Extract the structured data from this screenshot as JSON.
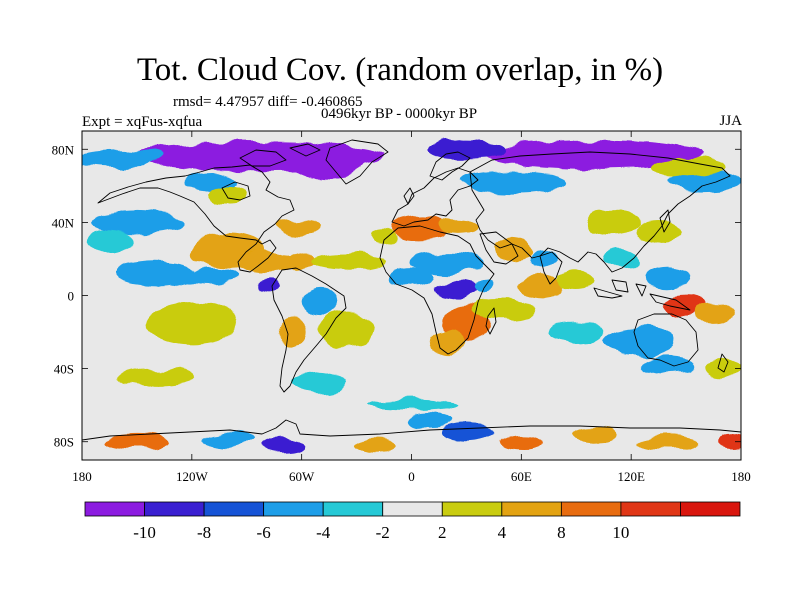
{
  "header": {
    "title": "Tot. Cloud Cov. (random overlap, in %)",
    "stats": "rmsd= 4.47957 diff= -0.460865",
    "period": "0496kyr BP - 0000kyr BP",
    "experiment": "Expt = xqFus-xqfua",
    "season": "JJA"
  },
  "map": {
    "projection": "cylindrical equidistant",
    "lon_range": [
      -180,
      180
    ],
    "lat_range": [
      -90,
      90
    ],
    "x_ticks": [
      {
        "lon": -180,
        "label": "180"
      },
      {
        "lon": -120,
        "label": "120W"
      },
      {
        "lon": -60,
        "label": "60W"
      },
      {
        "lon": 0,
        "label": "0"
      },
      {
        "lon": 60,
        "label": "60E"
      },
      {
        "lon": 120,
        "label": "120E"
      },
      {
        "lon": 180,
        "label": "180"
      }
    ],
    "y_ticks": [
      {
        "lat": 80,
        "label": "80N"
      },
      {
        "lat": 40,
        "label": "40N"
      },
      {
        "lat": 0,
        "label": "0"
      },
      {
        "lat": -40,
        "label": "40S"
      },
      {
        "lat": -80,
        "label": "80S"
      }
    ],
    "background_color": "#e8e8e8",
    "coastline_color": "#000000",
    "anomaly_patches": [
      {
        "lon": -85,
        "lat": 76,
        "rlon": 70,
        "rlat": 8,
        "level": -12
      },
      {
        "lon": -45,
        "lat": 74,
        "rlon": 20,
        "rlat": 10,
        "level": -12
      },
      {
        "lon": 100,
        "lat": 77,
        "rlon": 60,
        "rlat": 8,
        "level": -12
      },
      {
        "lon": 30,
        "lat": 80,
        "rlon": 20,
        "rlat": 5,
        "level": -10
      },
      {
        "lon": -160,
        "lat": 75,
        "rlon": 25,
        "rlat": 5,
        "level": -6
      },
      {
        "lon": -110,
        "lat": 62,
        "rlon": 15,
        "rlat": 5,
        "level": -6
      },
      {
        "lon": 55,
        "lat": 62,
        "rlon": 30,
        "rlat": 6,
        "level": -5
      },
      {
        "lon": 160,
        "lat": 62,
        "rlon": 20,
        "rlat": 6,
        "level": -5
      },
      {
        "lon": -100,
        "lat": 55,
        "rlon": 10,
        "rlat": 5,
        "level": 3
      },
      {
        "lon": 150,
        "lat": 70,
        "rlon": 20,
        "rlat": 5,
        "level": 3
      },
      {
        "lon": 5,
        "lat": 37,
        "rlon": 15,
        "rlat": 6,
        "level": 9
      },
      {
        "lon": 25,
        "lat": 38,
        "rlon": 10,
        "rlat": 4,
        "level": 6
      },
      {
        "lon": -15,
        "lat": 32,
        "rlon": 8,
        "rlat": 4,
        "level": 3
      },
      {
        "lon": -60,
        "lat": 38,
        "rlon": 12,
        "rlat": 4,
        "level": 6
      },
      {
        "lon": -150,
        "lat": 40,
        "rlon": 25,
        "rlat": 6,
        "level": -5
      },
      {
        "lon": -165,
        "lat": 30,
        "rlon": 12,
        "rlat": 6,
        "level": -4
      },
      {
        "lon": -140,
        "lat": 12,
        "rlon": 22,
        "rlat": 7,
        "level": -5
      },
      {
        "lon": -100,
        "lat": 24,
        "rlon": 20,
        "rlat": 10,
        "level": 6
      },
      {
        "lon": -80,
        "lat": 18,
        "rlon": 15,
        "rlat": 6,
        "level": 7
      },
      {
        "lon": -60,
        "lat": 18,
        "rlon": 8,
        "rlat": 5,
        "level": 5
      },
      {
        "lon": -35,
        "lat": 18,
        "rlon": 20,
        "rlat": 5,
        "level": 3
      },
      {
        "lon": -110,
        "lat": 10,
        "rlon": 15,
        "rlat": 4,
        "level": -5
      },
      {
        "lon": -78,
        "lat": 5,
        "rlon": 6,
        "rlat": 3,
        "level": -10
      },
      {
        "lon": -50,
        "lat": -3,
        "rlon": 10,
        "rlat": 8,
        "level": -5
      },
      {
        "lon": -65,
        "lat": -20,
        "rlon": 8,
        "rlat": 8,
        "level": 5
      },
      {
        "lon": -120,
        "lat": -15,
        "rlon": 25,
        "rlat": 12,
        "level": 3
      },
      {
        "lon": -35,
        "lat": -18,
        "rlon": 15,
        "rlat": 10,
        "level": 3
      },
      {
        "lon": 20,
        "lat": 18,
        "rlon": 20,
        "rlat": 6,
        "level": -5
      },
      {
        "lon": 0,
        "lat": 10,
        "rlon": 12,
        "rlat": 5,
        "level": -6
      },
      {
        "lon": 25,
        "lat": 3,
        "rlon": 12,
        "rlat": 5,
        "level": -10
      },
      {
        "lon": 40,
        "lat": 5,
        "rlon": 5,
        "rlat": 5,
        "level": -6
      },
      {
        "lon": 30,
        "lat": -15,
        "rlon": 12,
        "rlat": 10,
        "level": 9
      },
      {
        "lon": 20,
        "lat": -25,
        "rlon": 10,
        "rlat": 6,
        "level": 6
      },
      {
        "lon": 50,
        "lat": -8,
        "rlon": 18,
        "rlat": 5,
        "level": 3
      },
      {
        "lon": 55,
        "lat": 25,
        "rlon": 10,
        "rlat": 6,
        "level": 6
      },
      {
        "lon": 72,
        "lat": 20,
        "rlon": 8,
        "rlat": 6,
        "level": -5
      },
      {
        "lon": 70,
        "lat": 5,
        "rlon": 12,
        "rlat": 6,
        "level": 5
      },
      {
        "lon": 90,
        "lat": 8,
        "rlon": 10,
        "rlat": 5,
        "level": 3
      },
      {
        "lon": 110,
        "lat": 40,
        "rlon": 15,
        "rlat": 7,
        "level": 3
      },
      {
        "lon": 135,
        "lat": 35,
        "rlon": 12,
        "rlat": 6,
        "level": 3
      },
      {
        "lon": 115,
        "lat": 20,
        "rlon": 10,
        "rlat": 5,
        "level": -4
      },
      {
        "lon": 140,
        "lat": 10,
        "rlon": 12,
        "rlat": 6,
        "level": -6
      },
      {
        "lon": 150,
        "lat": -5,
        "rlon": 12,
        "rlat": 6,
        "level": 10
      },
      {
        "lon": 165,
        "lat": -10,
        "rlon": 10,
        "rlat": 5,
        "level": 5
      },
      {
        "lon": 125,
        "lat": -25,
        "rlon": 20,
        "rlat": 8,
        "level": -5
      },
      {
        "lon": 90,
        "lat": -20,
        "rlon": 15,
        "rlat": 6,
        "level": -4
      },
      {
        "lon": 140,
        "lat": -38,
        "rlon": 15,
        "rlat": 5,
        "level": -5
      },
      {
        "lon": 170,
        "lat": -40,
        "rlon": 10,
        "rlat": 5,
        "level": 3
      },
      {
        "lon": -140,
        "lat": -45,
        "rlon": 20,
        "rlat": 5,
        "level": 3
      },
      {
        "lon": -50,
        "lat": -48,
        "rlon": 15,
        "rlat": 6,
        "level": -4
      },
      {
        "lon": -150,
        "lat": -80,
        "rlon": 18,
        "rlat": 4,
        "level": 9
      },
      {
        "lon": -100,
        "lat": -78,
        "rlon": 15,
        "rlat": 4,
        "level": -6
      },
      {
        "lon": -70,
        "lat": -82,
        "rlon": 12,
        "rlat": 4,
        "level": -10
      },
      {
        "lon": -20,
        "lat": -82,
        "rlon": 12,
        "rlat": 4,
        "level": 6
      },
      {
        "lon": 30,
        "lat": -75,
        "rlon": 15,
        "rlat": 5,
        "level": -8
      },
      {
        "lon": 10,
        "lat": -68,
        "rlon": 12,
        "rlat": 4,
        "level": -5
      },
      {
        "lon": 60,
        "lat": -80,
        "rlon": 12,
        "rlat": 4,
        "level": 8
      },
      {
        "lon": 100,
        "lat": -76,
        "rlon": 12,
        "rlat": 4,
        "level": 6
      },
      {
        "lon": 140,
        "lat": -80,
        "rlon": 15,
        "rlat": 4,
        "level": 7
      },
      {
        "lon": 175,
        "lat": -80,
        "rlon": 8,
        "rlat": 4,
        "level": 10
      },
      {
        "lon": 0,
        "lat": -60,
        "rlon": 25,
        "rlat": 3,
        "level": -4
      }
    ]
  },
  "colorbar": {
    "colors": [
      "#8c1be0",
      "#3a1fd1",
      "#1553d6",
      "#1e9ee8",
      "#26c9d6",
      "#e8e8e8",
      "#c9cc10",
      "#e3a312",
      "#e86c10",
      "#e03616",
      "#d9160e"
    ],
    "labels": [
      "-10",
      "-8",
      "-6",
      "-4",
      "-2",
      "2",
      "4",
      "8",
      "10"
    ]
  }
}
